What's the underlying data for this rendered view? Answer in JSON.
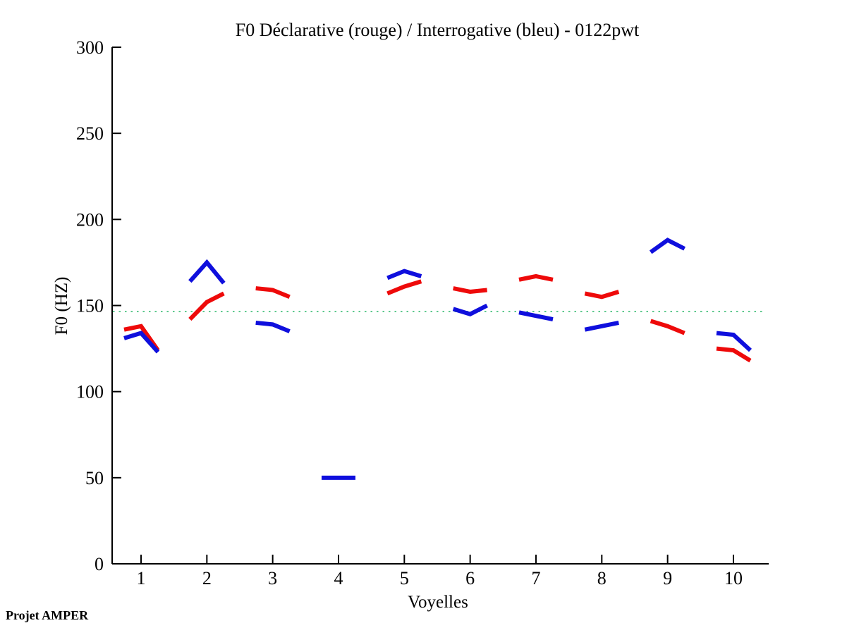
{
  "chart_data": {
    "type": "line",
    "title": "F0 Déclarative (rouge) / Interrogative (bleu) - 0122pwt",
    "xlabel": "Voyelles",
    "ylabel": "F0 (HZ)",
    "categories": [
      "1",
      "2",
      "3",
      "4",
      "5",
      "6",
      "7",
      "8",
      "9",
      "10"
    ],
    "ylim": [
      0,
      300
    ],
    "yticks": [
      0,
      50,
      100,
      150,
      200,
      250,
      300
    ],
    "grid": false,
    "legend_position": "none",
    "points_per_vowel": 3,
    "series": [
      {
        "name": "Déclarative (rouge)",
        "color": "#ee0a0a",
        "segments": [
          [
            136,
            138,
            124
          ],
          [
            142,
            152,
            157
          ],
          [
            160,
            159,
            155
          ],
          null,
          [
            157,
            161,
            164
          ],
          [
            160,
            158,
            159
          ],
          [
            165,
            167,
            165
          ],
          [
            157,
            155,
            158
          ],
          [
            141,
            138,
            134
          ],
          [
            125,
            124,
            118
          ]
        ]
      },
      {
        "name": "Interrogative (bleu)",
        "color": "#0f0fdd",
        "segments": [
          [
            131,
            134,
            123
          ],
          [
            164,
            175,
            163
          ],
          [
            140,
            139,
            135
          ],
          [
            50,
            50,
            50
          ],
          [
            166,
            170,
            167
          ],
          [
            148,
            145,
            150
          ],
          [
            146,
            144,
            142
          ],
          [
            136,
            138,
            140
          ],
          [
            181,
            188,
            183
          ],
          [
            134,
            133,
            124
          ]
        ]
      }
    ],
    "reference_line": {
      "value": 146.5,
      "color": "#5ec98d",
      "style": "dotted"
    },
    "axis_color": "#000000"
  },
  "footer": {
    "label": "Projet AMPER"
  }
}
